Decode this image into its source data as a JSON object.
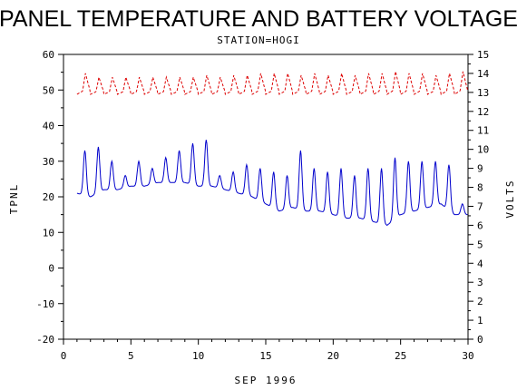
{
  "chart_data": {
    "type": "line",
    "title": "PANEL TEMPERATURE AND BATTERY VOLTAGE",
    "subtitle": "STATION=HOGI",
    "xlabel": "SEP 1996",
    "ylabel_left": "TPNL",
    "ylabel_right": "VOLTS",
    "xlim": [
      0,
      30
    ],
    "ylim_left": [
      -20,
      60
    ],
    "ylim_right": [
      0,
      15
    ],
    "x_ticks": [
      0,
      5,
      10,
      15,
      20,
      25,
      30
    ],
    "y_left_ticks": [
      -20,
      -10,
      0,
      10,
      20,
      30,
      40,
      50,
      60
    ],
    "y_right_ticks": [
      0,
      1,
      2,
      3,
      4,
      5,
      6,
      7,
      8,
      9,
      10,
      11,
      12,
      13,
      14,
      15
    ],
    "grid": false,
    "series": [
      {
        "axis": "left",
        "color": "#0000cc",
        "daily_min": [
          21,
          20,
          22,
          22,
          23,
          23,
          24,
          24,
          24,
          23,
          23,
          22,
          21,
          20,
          18,
          16,
          17,
          16,
          16,
          15,
          14,
          14,
          13,
          12,
          15,
          16,
          17,
          18,
          15
        ],
        "daily_max": [
          33,
          34,
          30,
          26,
          30,
          28,
          31,
          33,
          35,
          36,
          26,
          27,
          29,
          28,
          27,
          26,
          33,
          28,
          27,
          28,
          26,
          28,
          28,
          31,
          30,
          30,
          30,
          29,
          18
        ]
      },
      {
        "axis": "right",
        "color": "#dd0000",
        "daily_min": [
          12.9,
          12.9,
          12.9,
          12.9,
          12.9,
          12.9,
          12.9,
          12.9,
          12.9,
          12.9,
          12.9,
          12.9,
          12.9,
          12.9,
          12.9,
          12.9,
          12.9,
          12.9,
          12.9,
          12.9,
          12.9,
          12.9,
          12.9,
          12.9,
          12.9,
          12.9,
          12.9,
          12.9,
          12.9
        ],
        "daily_max": [
          14.0,
          13.8,
          13.8,
          13.8,
          13.8,
          13.8,
          13.8,
          13.8,
          13.8,
          13.9,
          13.8,
          13.9,
          13.9,
          14.0,
          14.0,
          14.0,
          13.9,
          14.0,
          13.9,
          14.0,
          13.9,
          14.0,
          14.0,
          14.1,
          14.0,
          14.0,
          13.9,
          14.0,
          14.1
        ]
      }
    ]
  }
}
